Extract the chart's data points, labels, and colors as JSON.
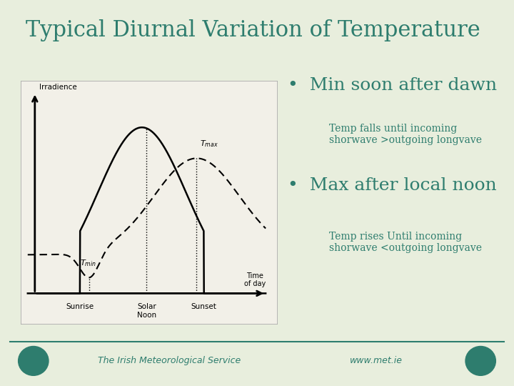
{
  "title": "Typical Diurnal Variation of Temperature",
  "title_color": "#2e7d6e",
  "title_fontsize": 22,
  "bg_color": "#e8eedd",
  "chart_bg": "#f2f0e8",
  "teal_color": "#2e7d6e",
  "bullet1_main": "Min soon after dawn",
  "bullet1_sub": "Temp falls until incoming\nshorwave >outgoing longvave",
  "bullet2_main": "Max after local noon",
  "bullet2_sub": "Temp rises Until incoming\nshorwave <outgoing longvave",
  "footer_left": "The Irish Meteorological Service",
  "footer_right": "www.met.ie",
  "chart_label_irradiance": "Irradience",
  "chart_label_time": "Time\nof day",
  "chart_label_sunrise": "Sunrise",
  "chart_label_solar_noon": "Solar\nNoon",
  "chart_label_sunset": "Sunset"
}
